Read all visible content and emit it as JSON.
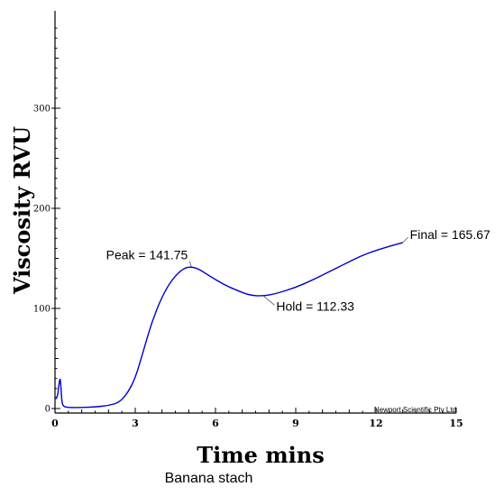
{
  "chart_data": {
    "type": "line",
    "title": "",
    "xlabel": "Time mins",
    "ylabel": "Viscosity RVU",
    "xlim": [
      0,
      15
    ],
    "ylim": [
      0,
      380
    ],
    "x_ticks": [
      0,
      3,
      6,
      9,
      12,
      15
    ],
    "y_ticks": [
      0,
      100,
      200,
      300
    ],
    "series": [
      {
        "color": "#0000cc",
        "points": [
          [
            0.0,
            10
          ],
          [
            0.1,
            12
          ],
          [
            0.15,
            25
          ],
          [
            0.2,
            32
          ],
          [
            0.25,
            8
          ],
          [
            0.3,
            2
          ],
          [
            0.5,
            1
          ],
          [
            1.0,
            1
          ],
          [
            1.5,
            1.5
          ],
          [
            2.0,
            3
          ],
          [
            2.4,
            6
          ],
          [
            2.7,
            15
          ],
          [
            3.0,
            30
          ],
          [
            3.3,
            57
          ],
          [
            3.6,
            85
          ],
          [
            4.0,
            112
          ],
          [
            4.4,
            130
          ],
          [
            4.8,
            140
          ],
          [
            5.1,
            141.75
          ],
          [
            5.4,
            139
          ],
          [
            5.8,
            132
          ],
          [
            6.3,
            124
          ],
          [
            6.8,
            118
          ],
          [
            7.3,
            113
          ],
          [
            7.8,
            112.33
          ],
          [
            8.3,
            115
          ],
          [
            9.0,
            121
          ],
          [
            9.6,
            128
          ],
          [
            10.2,
            136
          ],
          [
            10.8,
            144
          ],
          [
            11.4,
            152
          ],
          [
            12.0,
            158
          ],
          [
            12.5,
            162
          ],
          [
            13.0,
            165.67
          ]
        ]
      }
    ],
    "annotations": [
      {
        "text": "Peak = 141.75",
        "x": 5.1,
        "y": 141.75
      },
      {
        "text": "Hold = 112.33",
        "x": 7.8,
        "y": 112.33
      },
      {
        "text": "Final = 165.67",
        "x": 13.0,
        "y": 165.67
      }
    ],
    "credit": "Newport Scientific Pty Ltd",
    "caption": "Banana stach"
  }
}
